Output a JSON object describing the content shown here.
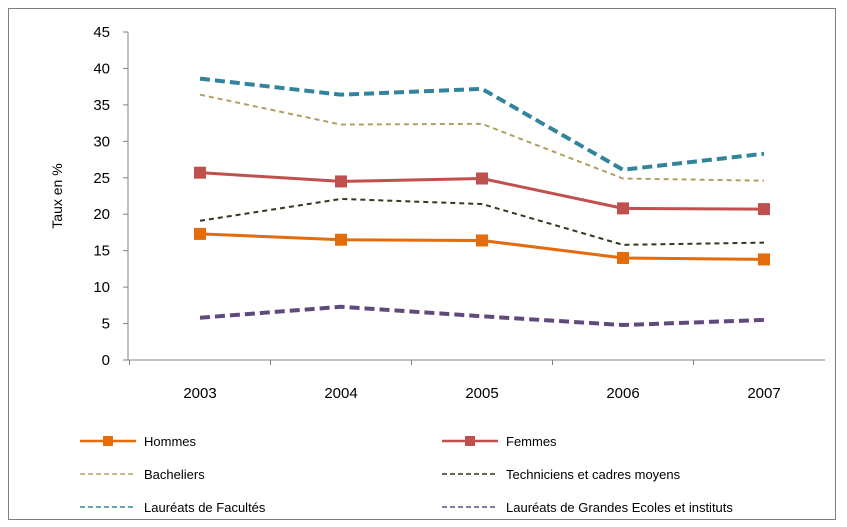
{
  "chart_data": {
    "type": "line",
    "title": "",
    "xlabel": "",
    "ylabel": "Taux en %",
    "categories": [
      "2003",
      "2004",
      "2005",
      "2006",
      "2007"
    ],
    "ylim": [
      0,
      45
    ],
    "yticks": [
      0,
      5,
      10,
      15,
      20,
      25,
      30,
      35,
      40,
      45
    ],
    "grid": false,
    "legend_position": "bottom",
    "series": [
      {
        "name": "Hommes",
        "values": [
          17.3,
          16.5,
          16.4,
          14.0,
          13.8
        ],
        "color": "#e46c0a",
        "style": "solid",
        "marker": "square"
      },
      {
        "name": "Femmes",
        "values": [
          25.7,
          24.5,
          24.9,
          20.8,
          20.7
        ],
        "color": "#c0504d",
        "style": "solid",
        "marker": "square"
      },
      {
        "name": "Bacheliers",
        "values": [
          36.4,
          32.3,
          32.4,
          24.9,
          24.6
        ],
        "color": "#b0a060",
        "style": "dashed",
        "marker": "none"
      },
      {
        "name": "Techniciens et cadres moyens",
        "values": [
          19.1,
          22.1,
          21.4,
          15.8,
          16.1
        ],
        "color": "#2f3a1e",
        "style": "dashed",
        "marker": "none"
      },
      {
        "name": "Lauréats de Facultés",
        "values": [
          38.6,
          36.4,
          37.2,
          26.1,
          28.3
        ],
        "color": "#31849b",
        "style": "dashed",
        "marker": "none"
      },
      {
        "name": "Lauréats de Grandes Ecoles et instituts",
        "values": [
          5.8,
          7.3,
          6.0,
          4.8,
          5.5
        ],
        "color": "#604a7b",
        "style": "dashed",
        "marker": "none"
      }
    ]
  }
}
